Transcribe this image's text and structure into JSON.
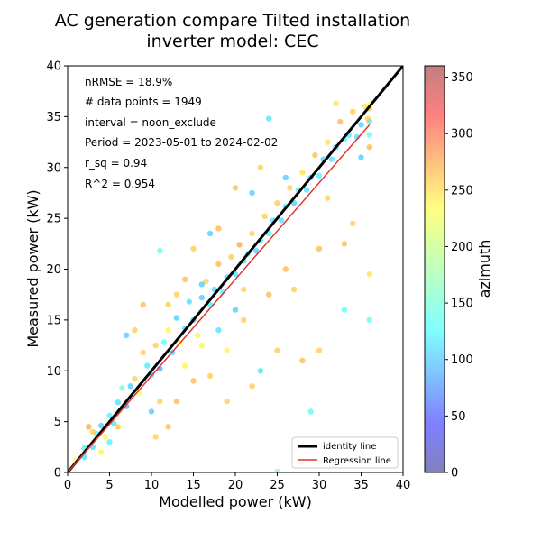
{
  "chart_data": {
    "type": "scatter",
    "title_lines": [
      "AC generation compare Tilted installation",
      "inverter model: CEC"
    ],
    "xlabel": "Modelled power (kW)",
    "ylabel": "Measured power (kW)",
    "xlim": [
      0,
      40
    ],
    "ylim": [
      0,
      40
    ],
    "xticks": [
      0,
      5,
      10,
      15,
      20,
      25,
      30,
      35,
      40
    ],
    "yticks": [
      0,
      5,
      10,
      15,
      20,
      25,
      30,
      35,
      40
    ],
    "grid": false,
    "stats": [
      "nRMSE = 18.9%",
      "# data points = 1949",
      "interval = noon_exclude",
      "Period = 2023-05-01 to 2024-02-02",
      "r_sq = 0.94",
      "R^2 = 0.954"
    ],
    "identity_line": {
      "x": [
        0,
        40
      ],
      "y": [
        0,
        40
      ],
      "color": "#000000"
    },
    "regression_line": {
      "x": [
        0,
        36
      ],
      "y": [
        0,
        34.2
      ],
      "color": "#e3342f"
    },
    "legend": {
      "position": "lower-right",
      "entries": [
        "identity line",
        "Regression line"
      ]
    },
    "colorbar": {
      "label": "azimuth",
      "min": 0,
      "max": 360,
      "ticks": [
        0,
        50,
        100,
        150,
        200,
        250,
        300,
        350
      ]
    },
    "points": [
      [
        1,
        1.2,
        220
      ],
      [
        2,
        2.4,
        130
      ],
      [
        2.5,
        4.5,
        270
      ],
      [
        3,
        2.5,
        115
      ],
      [
        3.5,
        3.8,
        140
      ],
      [
        4,
        4.6,
        110
      ],
      [
        4.5,
        3.5,
        230
      ],
      [
        5,
        5.6,
        130
      ],
      [
        5.5,
        4.8,
        120
      ],
      [
        6,
        6.9,
        120
      ],
      [
        6.5,
        8.3,
        150
      ],
      [
        7,
        6.5,
        100
      ],
      [
        7.5,
        8.5,
        110
      ],
      [
        8,
        9.2,
        250
      ],
      [
        8.5,
        7.8,
        220
      ],
      [
        9,
        11.8,
        250
      ],
      [
        9.5,
        10.5,
        125
      ],
      [
        10,
        9.6,
        110
      ],
      [
        10.5,
        12.5,
        250
      ],
      [
        11,
        10.2,
        90
      ],
      [
        11.5,
        12.8,
        140
      ],
      [
        12,
        14.0,
        230
      ],
      [
        12.5,
        11.8,
        120
      ],
      [
        13,
        15.2,
        110
      ],
      [
        13.5,
        12.8,
        220
      ],
      [
        14,
        14.2,
        120
      ],
      [
        14.5,
        16.8,
        120
      ],
      [
        15,
        15.0,
        110
      ],
      [
        15.5,
        13.5,
        230
      ],
      [
        16,
        17.2,
        110
      ],
      [
        16.5,
        18.8,
        250
      ],
      [
        17,
        16.5,
        130
      ],
      [
        17.5,
        18.0,
        115
      ],
      [
        18,
        20.5,
        260
      ],
      [
        18.5,
        17.8,
        130
      ],
      [
        19,
        19.2,
        110
      ],
      [
        19.5,
        21.2,
        250
      ],
      [
        20,
        19.5,
        120
      ],
      [
        20.5,
        22.4,
        270
      ],
      [
        21,
        20.8,
        120
      ],
      [
        21.5,
        21.5,
        130
      ],
      [
        22,
        23.5,
        250
      ],
      [
        22.5,
        21.8,
        110
      ],
      [
        23,
        22.8,
        120
      ],
      [
        23.5,
        25.2,
        250
      ],
      [
        24,
        23.5,
        130
      ],
      [
        24.5,
        24.8,
        120
      ],
      [
        25,
        26.5,
        250
      ],
      [
        25.5,
        24.8,
        120
      ],
      [
        26,
        26.2,
        130
      ],
      [
        26.5,
        28.0,
        250
      ],
      [
        27,
        26.5,
        110
      ],
      [
        27.5,
        27.8,
        130
      ],
      [
        28,
        29.5,
        240
      ],
      [
        28.5,
        27.8,
        120
      ],
      [
        29,
        29.0,
        110
      ],
      [
        29.5,
        31.2,
        255
      ],
      [
        30,
        29.2,
        130
      ],
      [
        30.5,
        30.8,
        110
      ],
      [
        31,
        32.5,
        240
      ],
      [
        31.5,
        30.8,
        120
      ],
      [
        32,
        32.0,
        110
      ],
      [
        32.5,
        34.5,
        260
      ],
      [
        33,
        32.8,
        130
      ],
      [
        33.5,
        33.2,
        120
      ],
      [
        34,
        35.5,
        250
      ],
      [
        34.5,
        33.0,
        120
      ],
      [
        35,
        34.2,
        110
      ],
      [
        35.5,
        36.0,
        240
      ],
      [
        36,
        34.5,
        130
      ],
      [
        36,
        35.8,
        250
      ],
      [
        36,
        33.2,
        140
      ],
      [
        36,
        32.0,
        260
      ],
      [
        36,
        36.2,
        220
      ],
      [
        35.8,
        34.8,
        250
      ],
      [
        12,
        16.5,
        250
      ],
      [
        13,
        7.0,
        260
      ],
      [
        14,
        10.5,
        230
      ],
      [
        15,
        9.0,
        260
      ],
      [
        16,
        12.5,
        230
      ],
      [
        17,
        9.5,
        250
      ],
      [
        17,
        23.5,
        110
      ],
      [
        18,
        24.0,
        260
      ],
      [
        19,
        12.0,
        230
      ],
      [
        19,
        7.0,
        250
      ],
      [
        20,
        28.0,
        260
      ],
      [
        21,
        15.0,
        250
      ],
      [
        22,
        27.5,
        110
      ],
      [
        22,
        8.5,
        250
      ],
      [
        23,
        10.0,
        120
      ],
      [
        23,
        30.0,
        250
      ],
      [
        24,
        17.5,
        260
      ],
      [
        25,
        12.0,
        250
      ],
      [
        25,
        0.1,
        170
      ],
      [
        26,
        20.0,
        260
      ],
      [
        26,
        29.0,
        110
      ],
      [
        27,
        18.0,
        250
      ],
      [
        28,
        11.0,
        260
      ],
      [
        29,
        6.0,
        140
      ],
      [
        30,
        12.0,
        250
      ],
      [
        30,
        22.0,
        260
      ],
      [
        31,
        27.0,
        250
      ],
      [
        32,
        36.3,
        240
      ],
      [
        33,
        22.5,
        260
      ],
      [
        33,
        16.0,
        140
      ],
      [
        34,
        24.5,
        250
      ],
      [
        35,
        31.0,
        110
      ],
      [
        36,
        19.5,
        240
      ],
      [
        36,
        15.0,
        140
      ],
      [
        24,
        34.8,
        120
      ],
      [
        10,
        6.0,
        110
      ],
      [
        11,
        7.0,
        250
      ],
      [
        12,
        4.5,
        260
      ],
      [
        10.5,
        3.5,
        250
      ],
      [
        9,
        16.5,
        260
      ],
      [
        8,
        14.0,
        250
      ],
      [
        7,
        13.5,
        110
      ],
      [
        11,
        21.8,
        140
      ],
      [
        15,
        22.0,
        250
      ],
      [
        16,
        18.5,
        110
      ],
      [
        13,
        17.5,
        250
      ],
      [
        14,
        19.0,
        260
      ],
      [
        18,
        14.0,
        120
      ],
      [
        20,
        16.0,
        110
      ],
      [
        21,
        18.0,
        250
      ],
      [
        5,
        3.0,
        130
      ],
      [
        6,
        4.5,
        250
      ],
      [
        4,
        2.0,
        230
      ],
      [
        3,
        4.0,
        250
      ],
      [
        2,
        1.5,
        120
      ]
    ]
  }
}
